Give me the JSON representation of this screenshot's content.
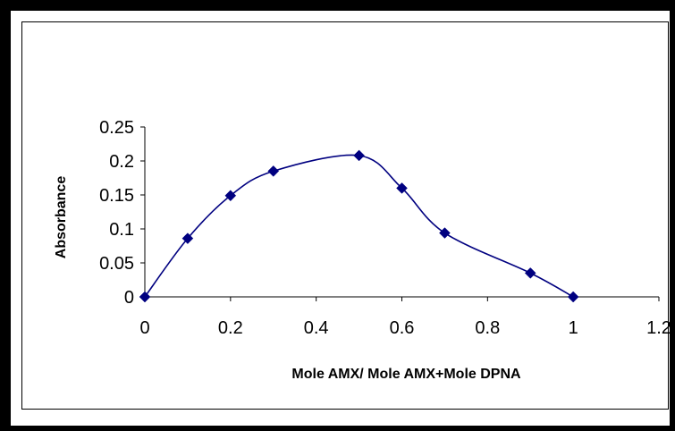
{
  "chart_data": {
    "type": "line",
    "title": "",
    "xlabel": "Mole AMX/ Mole AMX+Mole DPNA",
    "ylabel": "Absorbance",
    "xlim": [
      0,
      1.2
    ],
    "ylim": [
      0,
      0.25
    ],
    "x_ticks": [
      "0",
      "0.2",
      "0.4",
      "0.6",
      "0.8",
      "1",
      "1.2"
    ],
    "y_ticks": [
      "0",
      "0.05",
      "0.1",
      "0.15",
      "0.2",
      "0.25"
    ],
    "grid": false,
    "legend": "none",
    "smooth": true,
    "series": [
      {
        "color": "#000080",
        "marker": "diamond",
        "points": [
          [
            0,
            0
          ],
          [
            0.1,
            0.086
          ],
          [
            0.2,
            0.149
          ],
          [
            0.3,
            0.185
          ],
          [
            0.5,
            0.208
          ],
          [
            0.6,
            0.16
          ],
          [
            0.7,
            0.094
          ],
          [
            0.9,
            0.035
          ],
          [
            1.0,
            0.0
          ]
        ]
      }
    ]
  }
}
